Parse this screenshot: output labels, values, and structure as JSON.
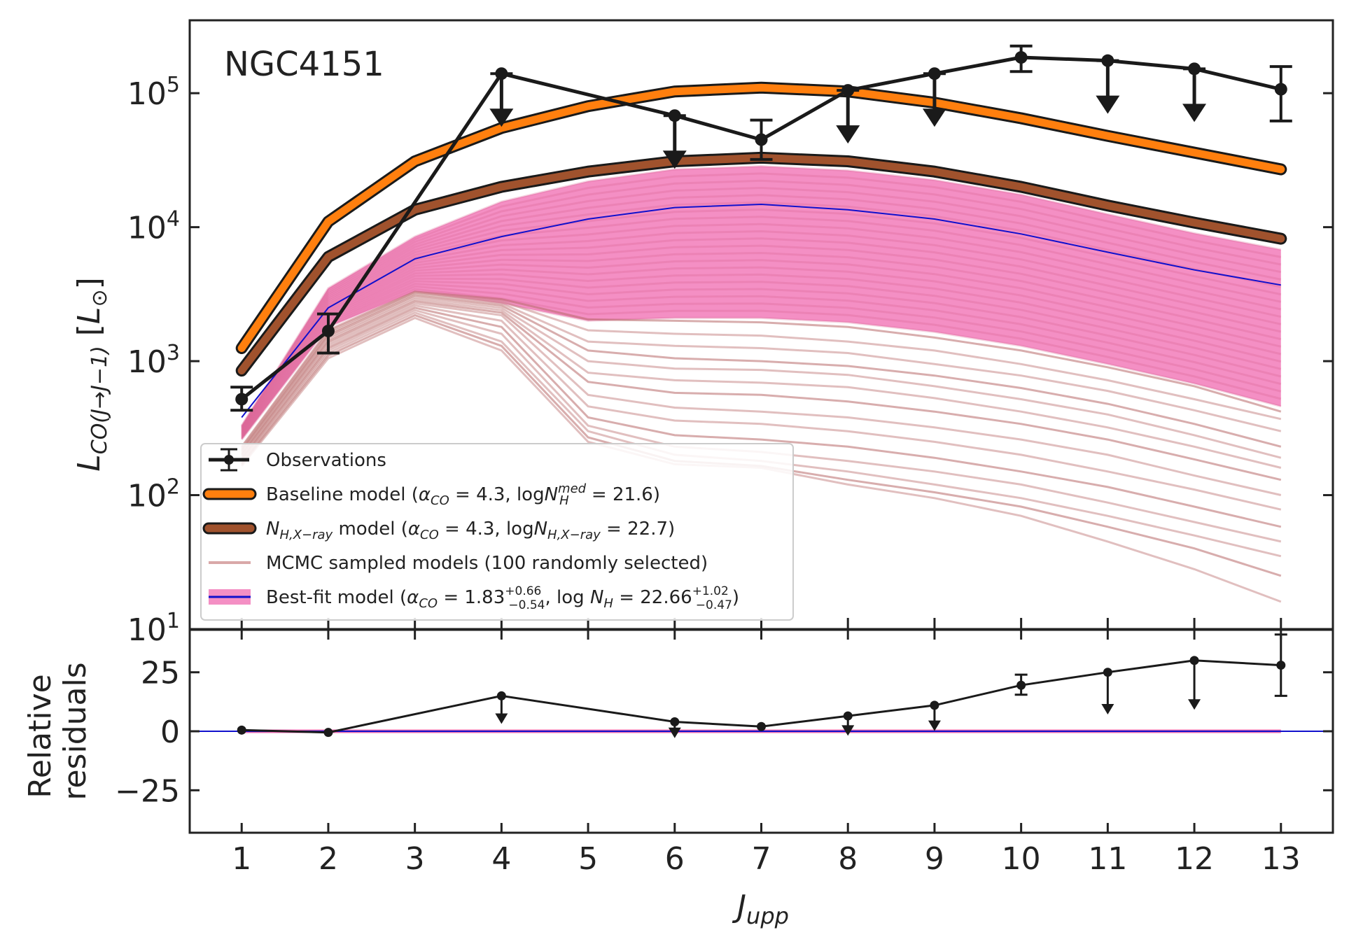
{
  "chart_data": [
    {
      "type": "line",
      "panel": "main",
      "title": "",
      "annotation": "NGC4151",
      "xlabel": "",
      "ylabel": "L_CO(J→J−1) [L⊙]",
      "ylabel_parts": {
        "L": "L",
        "sub": "CO(J→J−1)",
        "unit_open": " [",
        "unit_L": "L",
        "unit_sun": "⊙",
        "unit_close": "]"
      },
      "yscale": "log",
      "ylim": [
        10,
        350000
      ],
      "xlim": [
        0.4,
        13.6
      ],
      "x": [
        1,
        2,
        3,
        4,
        5,
        6,
        7,
        8,
        9,
        10,
        11,
        12,
        13
      ],
      "ytick_labels": [
        {
          "value": 10,
          "base": "10",
          "exp": "1"
        },
        {
          "value": 100,
          "base": "10",
          "exp": "2"
        },
        {
          "value": 1000,
          "base": "10",
          "exp": "3"
        },
        {
          "value": 10000,
          "base": "10",
          "exp": "4"
        },
        {
          "value": 100000,
          "base": "10",
          "exp": "5"
        }
      ],
      "series": [
        {
          "name": "Baseline model",
          "legend_text": "Baseline model (α_CO = 4.3, logN_H^med = 21.6)",
          "legend": {
            "pre": "Baseline model (",
            "alpha": "α",
            "alpha_sub": "CO",
            "mid": " = 4.3, log",
            "N": "N",
            "N_sub": "H",
            "N_sup": "med",
            "post": " = 21.6)"
          },
          "color": "#ff7f0e",
          "y": [
            1250,
            11000,
            31000,
            55000,
            80000,
            103000,
            110000,
            103000,
            85000,
            65000,
            48000,
            36000,
            27000
          ]
        },
        {
          "name": "N_H,X-ray model",
          "legend_text": "N_H,X−ray model (α_CO = 4.3, logN_H,X−ray = 22.7)",
          "legend": {
            "N": "N",
            "N_sub": "H,X−ray",
            "mid": " model (",
            "alpha": "α",
            "alpha_sub": "CO",
            "mid2": " = 4.3, log",
            "N2": "N",
            "N2_sub": "H,X−ray",
            "post": " = 22.7)"
          },
          "color": "#a0522d",
          "y": [
            850,
            6000,
            13500,
            20000,
            26000,
            31000,
            33000,
            31000,
            26000,
            20000,
            14500,
            10800,
            8200
          ]
        },
        {
          "name": "Best-fit model",
          "legend_text": "Best-fit model (α_CO = 1.83 +0.66 −0.54, log N_H = 22.66 +1.02 −0.47)",
          "legend": {
            "pre": "Best-fit model (",
            "alpha": "α",
            "alpha_sub": "CO",
            "mid": " = 1.83",
            "a_up": "+0.66",
            "a_dn": "−0.54",
            "mid2": ", log ",
            "N": "N",
            "N_sub": "H",
            "mid3": " = 22.66",
            "n_up": "+1.02",
            "n_dn": "−0.47",
            "post": ")"
          },
          "color": "#1010cc",
          "band_color": "#f48fc4",
          "y": [
            380,
            2500,
            5800,
            8500,
            11500,
            14000,
            14800,
            13500,
            11500,
            8900,
            6500,
            4800,
            3700
          ],
          "band_low": [
            260,
            1800,
            3300,
            2700,
            2000,
            2100,
            2100,
            1950,
            1650,
            1300,
            950,
            680,
            460
          ],
          "band_high": [
            330,
            3500,
            8500,
            15500,
            22000,
            27000,
            28500,
            26500,
            22500,
            17500,
            12500,
            9000,
            6800
          ]
        },
        {
          "name": "MCMC sampled models",
          "legend_text": "MCMC sampled models (100 randomly selected)",
          "color": "#c98a8a",
          "n_drawn": 14,
          "curves": [
            [
              230,
              1700,
              3300,
              2900,
              2050,
              2000,
              1950,
              1800,
              1500,
              1200,
              900,
              650,
              420
            ],
            [
              225,
              1650,
              3250,
              2800,
              1700,
              1600,
              1550,
              1400,
              1200,
              950,
              720,
              520,
              370
            ],
            [
              220,
              1600,
              3200,
              2700,
              1400,
              1300,
              1250,
              1150,
              950,
              780,
              600,
              430,
              300
            ],
            [
              215,
              1550,
              3100,
              2600,
              1200,
              1050,
              1000,
              920,
              780,
              630,
              480,
              340,
              230
            ],
            [
              210,
              1500,
              3000,
              2500,
              1000,
              880,
              860,
              790,
              650,
              520,
              400,
              280,
              190
            ],
            [
              205,
              1450,
              2900,
              2400,
              820,
              720,
              690,
              640,
              530,
              420,
              320,
              230,
              160
            ],
            [
              200,
              1400,
              2800,
              2300,
              700,
              580,
              560,
              500,
              420,
              340,
              260,
              185,
              130
            ],
            [
              195,
              1350,
              2700,
              2200,
              560,
              450,
              420,
              380,
              320,
              260,
              200,
              140,
              100
            ],
            [
              190,
              1300,
              2600,
              2000,
              460,
              360,
              340,
              300,
              250,
              200,
              150,
              110,
              78
            ],
            [
              185,
              1250,
              2500,
              1800,
              380,
              280,
              260,
              230,
              190,
              150,
              115,
              82,
              58
            ],
            [
              180,
              1200,
              2400,
              1600,
              330,
              230,
              210,
              180,
              150,
              120,
              88,
              63,
              45
            ],
            [
              175,
              1150,
              2300,
              1400,
              300,
              200,
              180,
              150,
              120,
              95,
              70,
              50,
              35
            ],
            [
              170,
              1100,
              2200,
              1300,
              270,
              180,
              165,
              130,
              105,
              82,
              58,
              40,
              25
            ],
            [
              165,
              1050,
              2100,
              1200,
              250,
              170,
              160,
              120,
              95,
              70,
              45,
              28,
              16
            ]
          ]
        },
        {
          "name": "Observations",
          "legend_text": "Observations",
          "color": "#1a1a1a",
          "x": [
            1,
            2,
            4,
            6,
            7,
            8,
            9,
            10,
            11,
            12,
            13
          ],
          "y": [
            520,
            1680,
            140000,
            68000,
            45000,
            105000,
            140000,
            185000,
            175000,
            152000,
            107000
          ],
          "err_low": [
            430,
            1150,
            null,
            null,
            32000,
            null,
            null,
            145000,
            null,
            null,
            62000
          ],
          "err_high": [
            640,
            2250,
            null,
            null,
            63000,
            null,
            null,
            225000,
            null,
            null,
            158000
          ],
          "upper_limit": [
            false,
            false,
            true,
            true,
            false,
            true,
            true,
            false,
            true,
            true,
            false
          ]
        }
      ]
    },
    {
      "type": "line",
      "panel": "residuals",
      "xlabel": "J_upp",
      "xlabel_parts": {
        "J": "J",
        "sub": "upp"
      },
      "ylabel": "Relative residuals",
      "ylabel_lines": [
        "Relative",
        "residuals"
      ],
      "ylim": [
        -43,
        43
      ],
      "xlim": [
        0.4,
        13.6
      ],
      "yticks": [
        -25,
        0,
        25
      ],
      "ytick_labels": [
        "−25",
        "0",
        "25"
      ],
      "xticks": [
        1,
        2,
        3,
        4,
        5,
        6,
        7,
        8,
        9,
        10,
        11,
        12,
        13
      ],
      "xtick_labels": [
        "1",
        "2",
        "3",
        "4",
        "5",
        "6",
        "7",
        "8",
        "9",
        "10",
        "11",
        "12",
        "13"
      ],
      "zero_line_color": "#1010cc",
      "series": [
        {
          "name": "Relative residuals",
          "color": "#1a1a1a",
          "x": [
            1,
            2,
            4,
            6,
            7,
            8,
            9,
            10,
            11,
            12,
            13
          ],
          "y": [
            0.5,
            -0.5,
            15,
            4,
            2,
            6.5,
            11,
            19.5,
            25,
            30,
            28
          ],
          "err_low": [
            null,
            null,
            null,
            null,
            null,
            null,
            null,
            15.5,
            null,
            null,
            15
          ],
          "err_high": [
            null,
            null,
            null,
            null,
            null,
            null,
            null,
            24,
            null,
            null,
            41
          ],
          "upper_limit": [
            false,
            false,
            true,
            true,
            false,
            true,
            true,
            false,
            true,
            true,
            false
          ],
          "limit_arrow_to": [
            null,
            null,
            4,
            -2,
            null,
            -1,
            1,
            null,
            8,
            10,
            null
          ]
        }
      ]
    }
  ]
}
